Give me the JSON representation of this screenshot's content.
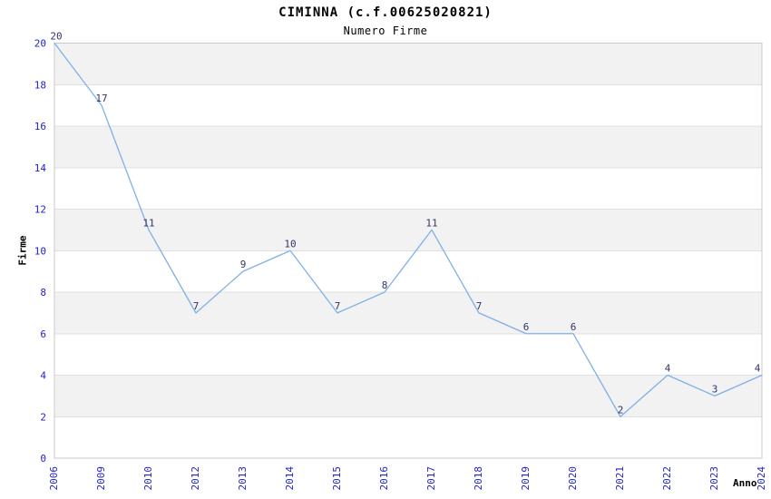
{
  "chart_data": {
    "type": "line",
    "title": "CIMINNA (c.f.00625020821)",
    "subtitle": "Numero Firme",
    "xlabel": "Anno",
    "ylabel": "Firme",
    "categories": [
      "2006",
      "2009",
      "2010",
      "2012",
      "2013",
      "2014",
      "2015",
      "2016",
      "2017",
      "2018",
      "2019",
      "2020",
      "2021",
      "2022",
      "2023",
      "2024"
    ],
    "values": [
      20,
      17,
      11,
      7,
      9,
      10,
      7,
      8,
      11,
      7,
      6,
      6,
      2,
      4,
      3,
      4
    ],
    "ylim": [
      0,
      20
    ],
    "ytick_step": 2,
    "legend": "none",
    "grid": "horizontal",
    "background_bands": "alternating",
    "x_tick_rotation": -90,
    "colors": {
      "line": "#7fb0e8",
      "tick_label": "#2222cc",
      "data_label": "#333366",
      "band_alt": "#f2f2f2",
      "gridline": "#e0e0e0",
      "plot_border": "#c9c9c9",
      "title_text": "#000000"
    }
  }
}
